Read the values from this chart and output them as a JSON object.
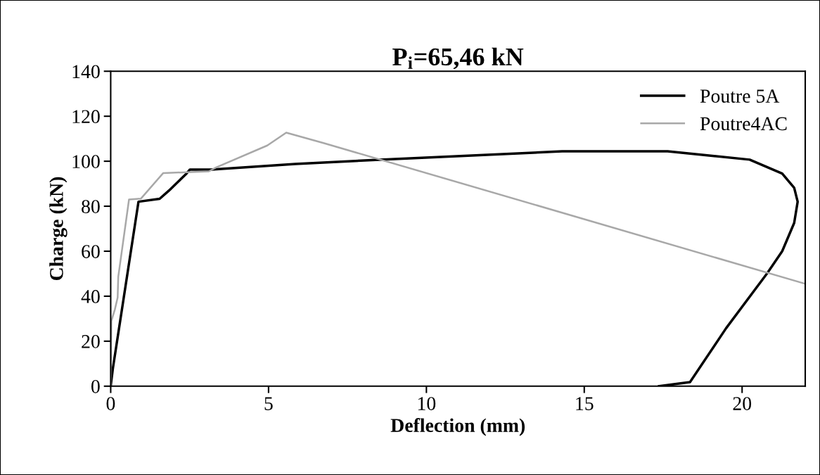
{
  "chart_data": {
    "type": "line",
    "title": "P$_{i}$=65,46 kN",
    "xlabel": "Deflection (mm)",
    "ylabel": "Charge (kN)",
    "xlim": [
      0,
      22
    ],
    "xticks": [
      0,
      5,
      10,
      15,
      20
    ],
    "ylim": [
      0,
      140
    ],
    "yticks": [
      0,
      20,
      40,
      60,
      80,
      100,
      120,
      140
    ],
    "grid": false,
    "legend": "top right",
    "marker": "none",
    "line_style": "solid",
    "series": [
      {
        "name": "Poutre 5A",
        "color": "#000000",
        "x": [
          0,
          0.07,
          0.88,
          1.55,
          1.85,
          2.4,
          2.51,
          3.18,
          5.85,
          8.39,
          14.3,
          17.64,
          20.24,
          21.27,
          21.65,
          21.76,
          21.65,
          21.27,
          20.8,
          19.49,
          18.35,
          17.37
        ],
        "values": [
          0,
          8,
          82,
          83.3,
          87,
          94.5,
          96.3,
          96.3,
          98.8,
          100.6,
          104.4,
          104.4,
          100.7,
          94.5,
          88.2,
          82,
          72.6,
          60,
          50.3,
          25.7,
          1.8,
          0
        ]
      },
      {
        "name": "Poutre4AC",
        "color": "#a8a8a8",
        "x": [
          0,
          0.02,
          0.13,
          0.22,
          0.24,
          0.58,
          0.96,
          1.66,
          3.11,
          3.33,
          4.96,
          5.56,
          6.74,
          21.98
        ],
        "values": [
          0,
          29,
          34,
          39.4,
          48.7,
          83,
          83.4,
          94.7,
          95.5,
          97.2,
          107,
          112.7,
          108.1,
          45.6
        ]
      }
    ]
  }
}
